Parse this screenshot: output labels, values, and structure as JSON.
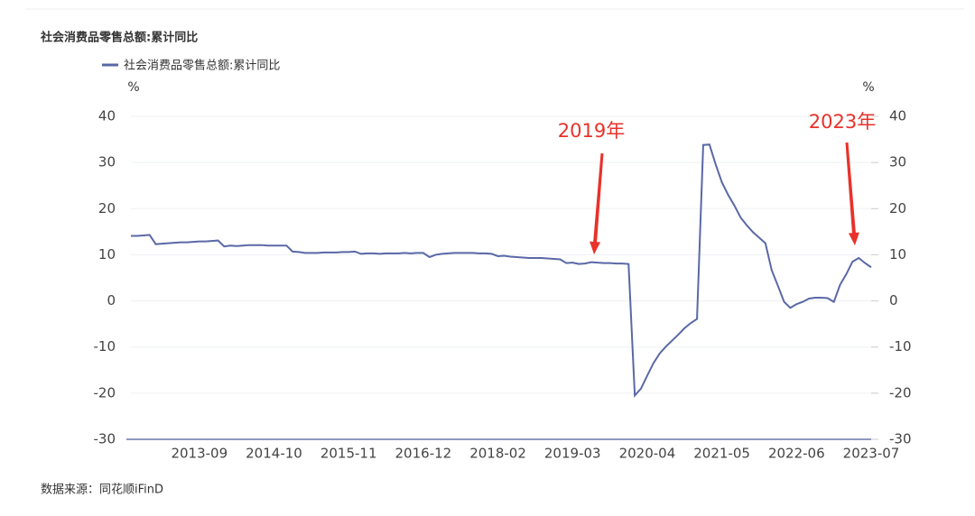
{
  "chart_data": {
    "type": "line",
    "title": "社会消费品零售总额:累计同比",
    "y_unit": "%",
    "y2_unit": "%",
    "source": "数据来源：同花顺iFinD",
    "annotations": [
      "2019年",
      "2023年"
    ],
    "annotation_color": "#e8322b",
    "categories": [
      null,
      null,
      null,
      null,
      null,
      null,
      null,
      null,
      null,
      null,
      null,
      "2013-09",
      null,
      null,
      null,
      null,
      null,
      null,
      null,
      null,
      null,
      null,
      null,
      "2014-10",
      null,
      null,
      null,
      null,
      null,
      null,
      null,
      null,
      null,
      null,
      null,
      "2015-11",
      null,
      null,
      null,
      null,
      null,
      null,
      null,
      null,
      null,
      null,
      null,
      "2016-12",
      null,
      null,
      null,
      null,
      null,
      null,
      null,
      null,
      null,
      null,
      null,
      "2018-02",
      null,
      null,
      null,
      null,
      null,
      null,
      null,
      null,
      null,
      null,
      null,
      "2019-03",
      null,
      null,
      null,
      null,
      null,
      null,
      null,
      null,
      null,
      null,
      null,
      "2020-04",
      null,
      null,
      null,
      null,
      null,
      null,
      null,
      null,
      null,
      null,
      null,
      "2021-05",
      null,
      null,
      null,
      null,
      null,
      null,
      null,
      null,
      null,
      null,
      null,
      "2022-06",
      null,
      null,
      null,
      null,
      null,
      null,
      null,
      null,
      null,
      null,
      null,
      "2023-07"
    ],
    "series": [
      {
        "name": "社会消费品零售总额:累计同比",
        "color": "#5a68a6",
        "values": [
          14.1,
          14.1,
          14.2,
          14.3,
          12.3,
          12.4,
          12.5,
          12.6,
          12.7,
          12.7,
          12.8,
          12.9,
          12.9,
          13.0,
          13.1,
          11.8,
          12.0,
          11.9,
          12.0,
          12.1,
          12.1,
          12.1,
          12.0,
          12.0,
          12.0,
          12.0,
          10.7,
          10.6,
          10.4,
          10.4,
          10.4,
          10.5,
          10.5,
          10.5,
          10.6,
          10.6,
          10.7,
          10.2,
          10.3,
          10.3,
          10.2,
          10.3,
          10.3,
          10.3,
          10.4,
          10.3,
          10.4,
          10.4,
          9.5,
          10.0,
          10.2,
          10.3,
          10.4,
          10.4,
          10.4,
          10.4,
          10.3,
          10.3,
          10.2,
          9.7,
          9.8,
          9.6,
          9.5,
          9.4,
          9.3,
          9.3,
          9.3,
          9.2,
          9.1,
          9.0,
          8.2,
          8.3,
          8.0,
          8.1,
          8.4,
          8.3,
          8.2,
          8.2,
          8.1,
          8.1,
          8.0,
          -20.5,
          -19.0,
          -16.2,
          -13.5,
          -11.4,
          -9.9,
          -8.6,
          -7.3,
          -5.9,
          -4.8,
          -3.9,
          33.8,
          33.9,
          29.6,
          25.7,
          23.0,
          20.7,
          18.1,
          16.4,
          14.9,
          13.7,
          12.5,
          6.7,
          3.3,
          -0.2,
          -1.5,
          -0.7,
          -0.2,
          0.5,
          0.7,
          0.7,
          0.6,
          -0.2,
          3.5,
          5.8,
          8.5,
          9.3,
          8.2,
          7.3
        ]
      }
    ],
    "ylim": [
      -30,
      40
    ],
    "yticks": [
      -30,
      -20,
      -10,
      0,
      10,
      20,
      30,
      40
    ],
    "y2lim": [
      -30,
      40
    ],
    "y2ticks": [
      -30,
      -20,
      -10,
      0,
      10,
      20,
      30,
      40
    ],
    "grid": true
  }
}
